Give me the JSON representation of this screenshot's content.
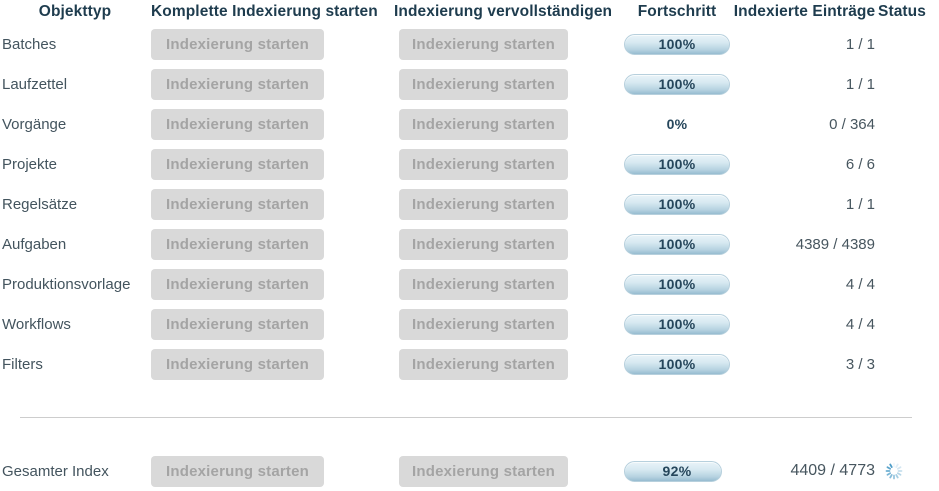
{
  "table": {
    "headers": [
      "Objekttyp",
      "Komplette Indexierung starten",
      "Indexierung vervollständigen",
      "Fortschritt",
      "Indexierte Einträge",
      "Status"
    ],
    "button_label": "Indexierung starten",
    "rows": [
      {
        "label": "Batches",
        "progress": 100,
        "progress_label": "100%",
        "entries": "1 / 1"
      },
      {
        "label": "Laufzettel",
        "progress": 100,
        "progress_label": "100%",
        "entries": "1 / 1"
      },
      {
        "label": "Vorgänge",
        "progress": 0,
        "progress_label": "0%",
        "entries": "0 / 364"
      },
      {
        "label": "Projekte",
        "progress": 100,
        "progress_label": "100%",
        "entries": "6 / 6"
      },
      {
        "label": "Regelsätze",
        "progress": 100,
        "progress_label": "100%",
        "entries": "1 / 1"
      },
      {
        "label": "Aufgaben",
        "progress": 100,
        "progress_label": "100%",
        "entries": "4389 / 4389"
      },
      {
        "label": "Produktionsvorlage",
        "progress": 100,
        "progress_label": "100%",
        "entries": "4 / 4"
      },
      {
        "label": "Workflows",
        "progress": 100,
        "progress_label": "100%",
        "entries": "4 / 4"
      },
      {
        "label": "Filters",
        "progress": 100,
        "progress_label": "100%",
        "entries": "3 / 3"
      }
    ],
    "total_row": {
      "label": "Gesamter Index",
      "progress": 92,
      "progress_label": "92%",
      "entries": "4409 / 4773",
      "status_icon": "loading-spinner-icon"
    }
  },
  "colors": {
    "header_text": "#1e3c4e",
    "label_text": "#43545e",
    "value_text": "#47565f",
    "button_bg": "#d9d9d9",
    "button_text": "#a4a4a4",
    "pill_top": "#e9f3f8",
    "pill_bottom": "#96bcd0",
    "pill_text": "#25465b",
    "divider": "#cdcdcd",
    "spinner": "#4e9dc8"
  }
}
